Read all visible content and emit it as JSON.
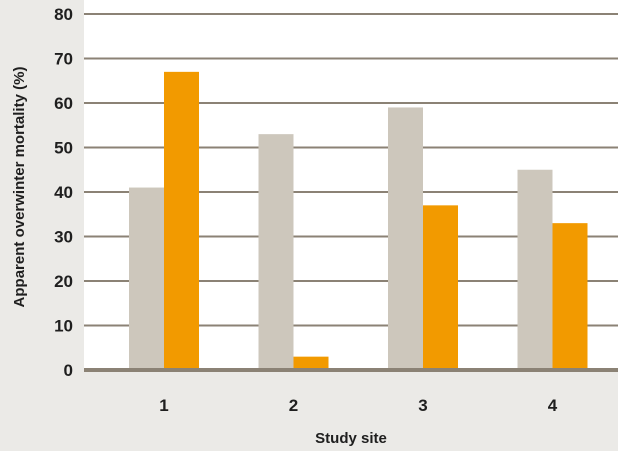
{
  "chart_data": {
    "type": "bar",
    "title": "",
    "xlabel": "Study site",
    "ylabel": "Apparent overwinter mortality (%)",
    "categories": [
      "1",
      "2",
      "3",
      "4"
    ],
    "series": [
      {
        "color": "#cdc7bc",
        "values": [
          41,
          53,
          59,
          45
        ]
      },
      {
        "color": "#f29a00",
        "values": [
          67,
          3,
          37,
          33
        ]
      }
    ],
    "ylim": [
      0,
      80
    ],
    "yticks": [
      "0",
      "10",
      "20",
      "30",
      "40",
      "50",
      "60",
      "70",
      "80"
    ],
    "grid": true,
    "legend": "none",
    "colors": {
      "background": "#ebeae7",
      "plot_background": "#ffffff",
      "gridline": "#8b8275"
    }
  }
}
